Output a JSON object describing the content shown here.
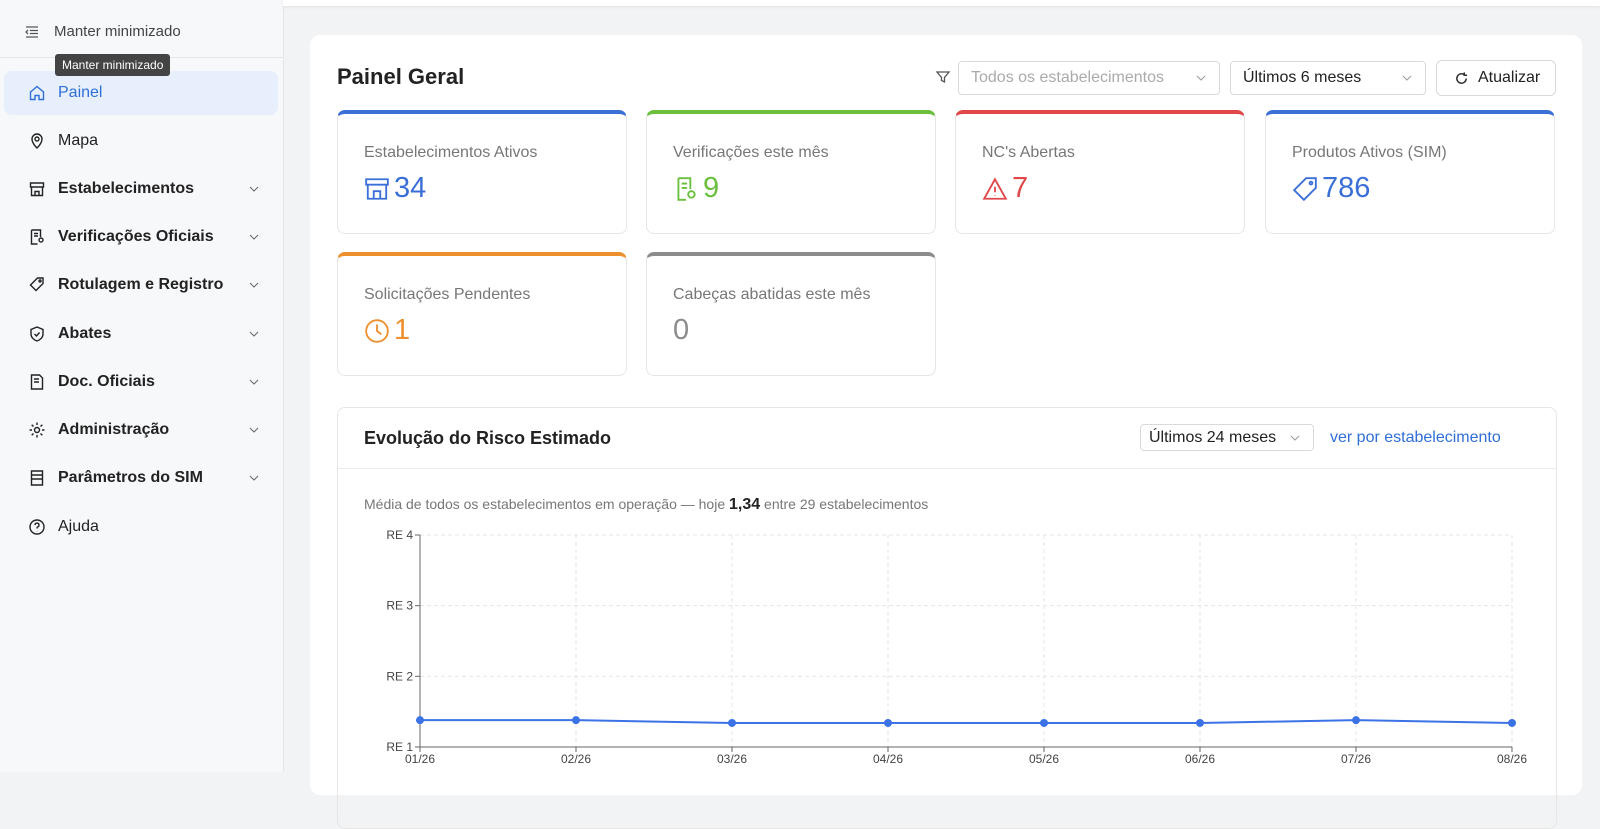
{
  "sidebar": {
    "collapse_label": "Manter minimizado",
    "tooltip": "Manter minimizado",
    "items": [
      {
        "label": "Painel",
        "active": true
      },
      {
        "label": "Mapa"
      },
      {
        "label": "Estabelecimentos"
      },
      {
        "label": "Verificações Oficiais"
      },
      {
        "label": "Rotulagem e Registro"
      },
      {
        "label": "Abates"
      },
      {
        "label": "Doc. Oficiais"
      },
      {
        "label": "Administração"
      },
      {
        "label": "Parâmetros do SIM"
      },
      {
        "label": "Ajuda"
      }
    ]
  },
  "header": {
    "title": "Painel Geral",
    "filter_placeholder": "Todos os estabelecimentos",
    "period": "Últimos 6 meses",
    "refresh": "Atualizar"
  },
  "kpis": [
    {
      "label": "Estabelecimentos Ativos",
      "value": 34,
      "color": "#3b6fd8"
    },
    {
      "label": "Verificações este mês",
      "value": 9,
      "color": "#6abf3c"
    },
    {
      "label": "NC's Abertas",
      "value": 7,
      "color": "#e0484a"
    },
    {
      "label": "Produtos Ativos (SIM)",
      "value": 786,
      "color": "#3b6fd8"
    },
    {
      "label": "Solicitações Pendentes",
      "value": 1,
      "color": "#ee8f2e"
    },
    {
      "label": "Cabeças abatidas este mês",
      "value": 0,
      "color": "#8c8c8c"
    }
  ],
  "risk_panel": {
    "title": "Evolução do Risco Estimado",
    "period": "Últimos 24 meses",
    "link": "ver por estabelecimento",
    "subtitle_prefix": "Média de todos os estabelecimentos em operação — hoje",
    "today_value": "1,34",
    "subtitle_suffix": "entre 29 estabelecimentos"
  },
  "chart_data": {
    "type": "line",
    "categories": [
      "01/26",
      "02/26",
      "03/26",
      "04/26",
      "05/26",
      "06/26",
      "07/26",
      "08/26"
    ],
    "values": [
      1.38,
      1.38,
      1.34,
      1.34,
      1.34,
      1.34,
      1.38,
      1.34
    ],
    "color": "#3b73e6",
    "ylim": [
      1,
      4
    ],
    "yticks": [
      {
        "value": 1,
        "label": "RE 1"
      },
      {
        "value": 2,
        "label": "RE 2"
      },
      {
        "value": 3,
        "label": "RE 3"
      },
      {
        "value": 4,
        "label": "RE 4"
      }
    ],
    "grid": true
  }
}
